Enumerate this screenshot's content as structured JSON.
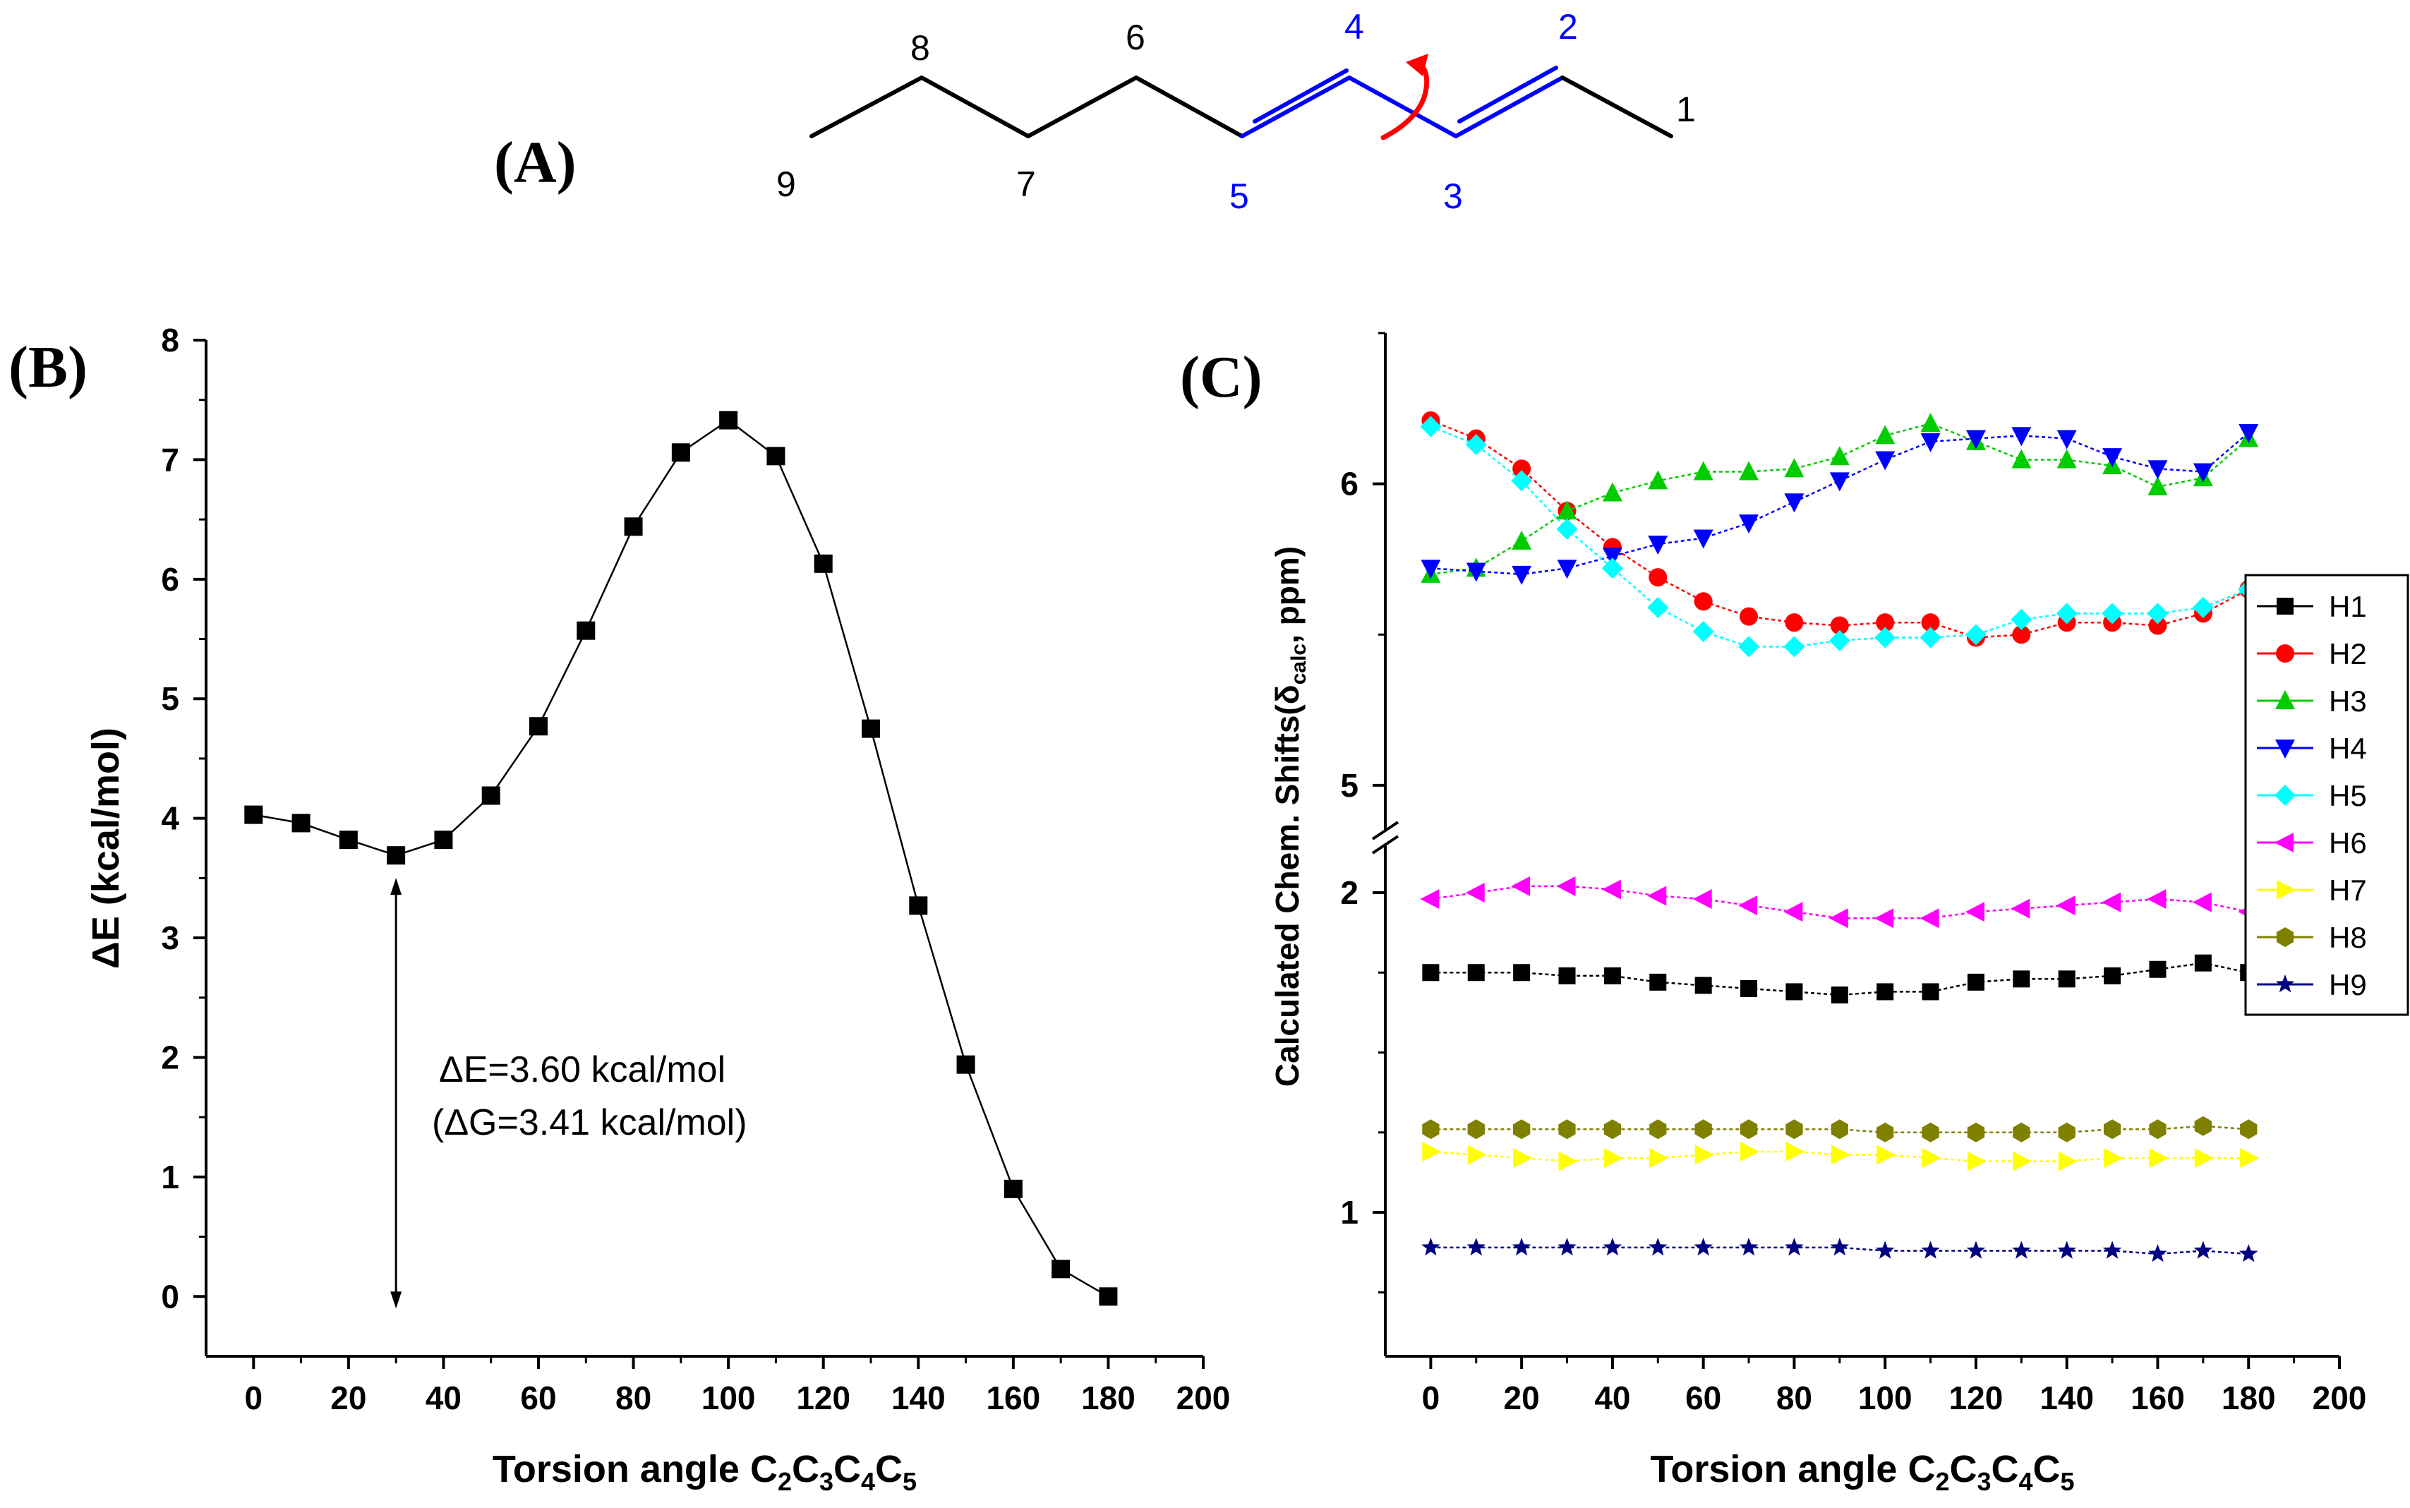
{
  "panels": {
    "a": "(A)",
    "b": "(B)",
    "c": "(C)"
  },
  "molecule": {
    "atom_labels": [
      {
        "id": "1",
        "color": "#000000"
      },
      {
        "id": "2",
        "color": "#0000FF"
      },
      {
        "id": "3",
        "color": "#0000FF"
      },
      {
        "id": "4",
        "color": "#0000FF"
      },
      {
        "id": "5",
        "color": "#0000FF"
      },
      {
        "id": "6",
        "color": "#000000"
      },
      {
        "id": "7",
        "color": "#000000"
      },
      {
        "id": "8",
        "color": "#000000"
      },
      {
        "id": "9",
        "color": "#000000"
      }
    ],
    "rotation_arrow_color": "#FF0000"
  },
  "chart_data": [
    {
      "type": "line",
      "panel": "B",
      "title": "",
      "xlabel": {
        "pre": "Torsion angle C",
        "s1": "2",
        "c2": "C",
        "s2": "3",
        "c3": "C",
        "s3": "4",
        "c4": "C",
        "s4": "5"
      },
      "ylabel": "ΔE (kcal/mol)",
      "xlim": [
        -10,
        200
      ],
      "ylim": [
        -0.5,
        8
      ],
      "xticks": [
        "0",
        "20",
        "40",
        "60",
        "80",
        "100",
        "120",
        "140",
        "160",
        "180",
        "200"
      ],
      "yticks": [
        "0",
        "1",
        "2",
        "3",
        "4",
        "5",
        "6",
        "7",
        "8"
      ],
      "series": [
        {
          "name": "ΔE",
          "color": "#000000",
          "marker": "square",
          "x": [
            0,
            10,
            20,
            30,
            40,
            50,
            60,
            70,
            80,
            90,
            100,
            110,
            120,
            130,
            140,
            150,
            160,
            170,
            180
          ],
          "y": [
            4.03,
            3.96,
            3.82,
            3.69,
            3.82,
            4.19,
            4.77,
            5.57,
            6.44,
            7.06,
            7.33,
            7.03,
            6.13,
            4.75,
            3.27,
            1.94,
            0.9,
            0.23,
            0.0
          ]
        }
      ],
      "annotations": {
        "line1": "ΔE=3.60 kcal/mol",
        "line2": "(ΔG=3.41 kcal/mol)"
      }
    },
    {
      "type": "line",
      "panel": "C",
      "title": "",
      "xlabel": {
        "pre": "Torsion angle C",
        "s1": "2",
        "c2": "C",
        "s2": "3",
        "c3": "C",
        "s3": "4",
        "c4": "C",
        "s4": "5"
      },
      "ylabel": {
        "pre": "Calculated Chem. Shifts(δ",
        "sub": "calc",
        "post": ", ppm)"
      },
      "xlim": [
        -10,
        200
      ],
      "ylim_lower": [
        0.55,
        2.15
      ],
      "ylim_upper": [
        4.85,
        6.5
      ],
      "xticks": [
        "0",
        "20",
        "40",
        "60",
        "80",
        "100",
        "120",
        "140",
        "160",
        "180",
        "200"
      ],
      "yticks_lower": [
        "1",
        "2"
      ],
      "yticks_upper": [
        "5",
        "6"
      ],
      "x": [
        0,
        10,
        20,
        30,
        40,
        50,
        60,
        70,
        80,
        90,
        100,
        110,
        120,
        130,
        140,
        150,
        160,
        170,
        180
      ],
      "series": [
        {
          "name": "H1",
          "color": "#000000",
          "marker": "square",
          "y": [
            1.75,
            1.75,
            1.75,
            1.74,
            1.74,
            1.72,
            1.71,
            1.7,
            1.69,
            1.68,
            1.69,
            1.69,
            1.72,
            1.73,
            1.73,
            1.74,
            1.76,
            1.78,
            1.75
          ]
        },
        {
          "name": "H2",
          "color": "#FF0000",
          "marker": "circle",
          "y": [
            6.21,
            6.15,
            6.05,
            5.91,
            5.79,
            5.69,
            5.61,
            5.56,
            5.54,
            5.53,
            5.54,
            5.54,
            5.49,
            5.5,
            5.54,
            5.54,
            5.53,
            5.57,
            5.65
          ]
        },
        {
          "name": "H3",
          "color": "#00CC00",
          "marker": "triangle-up",
          "y": [
            5.7,
            5.72,
            5.81,
            5.91,
            5.97,
            6.01,
            6.04,
            6.04,
            6.05,
            6.09,
            6.16,
            6.2,
            6.14,
            6.08,
            6.08,
            6.06,
            5.99,
            6.02,
            6.15
          ]
        },
        {
          "name": "H4",
          "color": "#0000FF",
          "marker": "triangle-down",
          "y": [
            5.72,
            5.71,
            5.7,
            5.72,
            5.76,
            5.8,
            5.82,
            5.87,
            5.94,
            6.01,
            6.08,
            6.14,
            6.15,
            6.16,
            6.15,
            6.09,
            6.05,
            6.04,
            6.17
          ]
        },
        {
          "name": "H5",
          "color": "#00FFFF",
          "marker": "diamond",
          "y": [
            6.19,
            6.13,
            6.01,
            5.85,
            5.72,
            5.59,
            5.51,
            5.46,
            5.46,
            5.48,
            5.49,
            5.49,
            5.5,
            5.55,
            5.57,
            5.57,
            5.57,
            5.59,
            5.65
          ]
        },
        {
          "name": "H6",
          "color": "#FF00FF",
          "marker": "triangle-left",
          "y": [
            1.98,
            2.0,
            2.02,
            2.02,
            2.01,
            1.99,
            1.98,
            1.96,
            1.94,
            1.92,
            1.92,
            1.92,
            1.94,
            1.95,
            1.96,
            1.97,
            1.98,
            1.97,
            1.94
          ]
        },
        {
          "name": "H7",
          "color": "#FFFF00",
          "marker": "triangle-right",
          "y": [
            1.19,
            1.18,
            1.17,
            1.16,
            1.17,
            1.17,
            1.18,
            1.19,
            1.19,
            1.18,
            1.18,
            1.17,
            1.16,
            1.16,
            1.16,
            1.17,
            1.17,
            1.17,
            1.17
          ]
        },
        {
          "name": "H8",
          "color": "#808000",
          "marker": "hexagon",
          "y": [
            1.26,
            1.26,
            1.26,
            1.26,
            1.26,
            1.26,
            1.26,
            1.26,
            1.26,
            1.26,
            1.25,
            1.25,
            1.25,
            1.25,
            1.25,
            1.26,
            1.26,
            1.27,
            1.26
          ]
        },
        {
          "name": "H9",
          "color": "#000080",
          "marker": "star",
          "y": [
            0.89,
            0.89,
            0.89,
            0.89,
            0.89,
            0.89,
            0.89,
            0.89,
            0.89,
            0.89,
            0.88,
            0.88,
            0.88,
            0.88,
            0.88,
            0.88,
            0.87,
            0.88,
            0.87
          ]
        }
      ],
      "legend_position": "right"
    }
  ]
}
